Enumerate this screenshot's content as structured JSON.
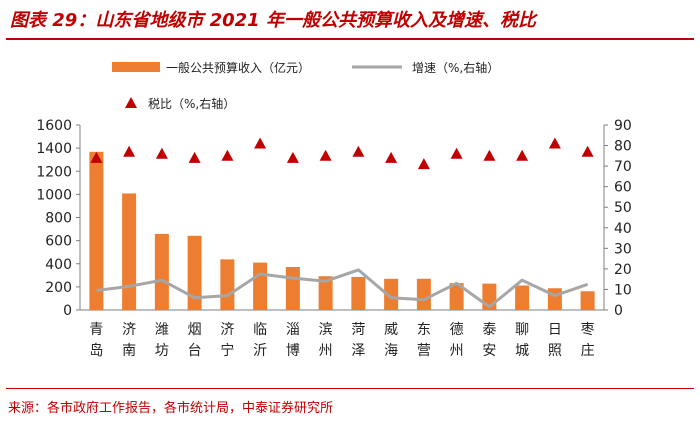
{
  "header": {
    "title": "图表 29：山东省地级市 2021 年一般公共预算收入及增速、税比"
  },
  "footer": {
    "source": "来源：各市政府工作报告，各市统计局，中泰证券研究所"
  },
  "chart_data": {
    "type": "bar",
    "categories": [
      "青岛",
      "济南",
      "潍坊",
      "烟台",
      "济宁",
      "临沂",
      "淄博",
      "滨州",
      "菏泽",
      "威海",
      "东营",
      "德州",
      "泰安",
      "聊城",
      "日照",
      "枣庄"
    ],
    "series": [
      {
        "name": "一般公共预算收入（亿元）",
        "type": "bar",
        "axis": "left",
        "color": "#ed7d31",
        "values": [
          1368,
          1008,
          658,
          642,
          438,
          410,
          372,
          292,
          286,
          270,
          270,
          232,
          228,
          212,
          188,
          162
        ]
      },
      {
        "name": "增速（%,右轴）",
        "type": "line",
        "axis": "right",
        "color": "#a6a6a6",
        "values": [
          9.5,
          11.5,
          14.5,
          6.0,
          7.0,
          17.5,
          15.5,
          14.0,
          19.5,
          6.0,
          5.0,
          13.0,
          1.5,
          14.5,
          7.0,
          12.5
        ]
      },
      {
        "name": "税比（%,右轴）",
        "type": "scatter",
        "axis": "right",
        "color": "#c00000",
        "marker": "triangle",
        "values": [
          74,
          77,
          76,
          74,
          75,
          81,
          74,
          75,
          77,
          74,
          71,
          76,
          75,
          75,
          81,
          77
        ]
      }
    ],
    "ylim_left": [
      0,
      1600
    ],
    "yticks_left": [
      "0",
      "200",
      "400",
      "600",
      "800",
      "1000",
      "1200",
      "1400",
      "1600"
    ],
    "ylim_right": [
      0,
      90
    ],
    "yticks_right": [
      "0",
      "10",
      "20",
      "30",
      "40",
      "50",
      "60",
      "70",
      "80",
      "90"
    ],
    "grid": false,
    "legend_placement": "top"
  }
}
